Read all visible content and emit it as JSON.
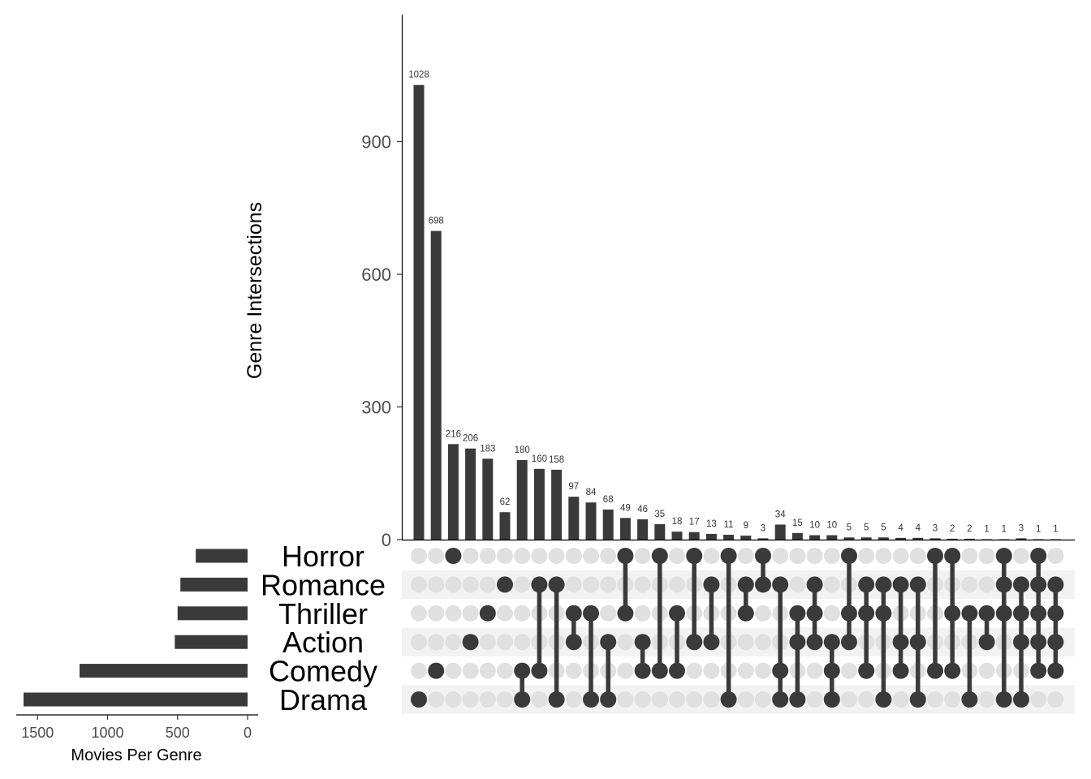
{
  "chart_data": {
    "type": "upset",
    "intersection_axis": {
      "label": "Genre Intersections",
      "ylim": [
        0,
        1180
      ],
      "ticks": [
        0,
        300,
        600,
        900
      ]
    },
    "set_size_axis": {
      "label": "Movies Per Genre",
      "xlim": [
        1650,
        0
      ],
      "ticks": [
        1500,
        1000,
        500,
        0
      ]
    },
    "sets": [
      "Horror",
      "Romance",
      "Thriller",
      "Action",
      "Comedy",
      "Drama"
    ],
    "set_sizes": [
      370,
      480,
      500,
      520,
      1200,
      1600
    ],
    "intersections": [
      {
        "value": 1028,
        "label": "1028",
        "members": [
          "Drama"
        ]
      },
      {
        "value": 698,
        "label": "698",
        "members": [
          "Comedy"
        ]
      },
      {
        "value": 216,
        "label": "216",
        "members": [
          "Horror"
        ]
      },
      {
        "value": 206,
        "label": "206",
        "members": [
          "Action"
        ]
      },
      {
        "value": 183,
        "label": "183",
        "members": [
          "Thriller"
        ]
      },
      {
        "value": 62,
        "label": "62",
        "members": [
          "Romance"
        ]
      },
      {
        "value": 180,
        "label": "180",
        "members": [
          "Comedy",
          "Drama"
        ]
      },
      {
        "value": 160,
        "label": "160",
        "members": [
          "Romance",
          "Comedy"
        ]
      },
      {
        "value": 158,
        "label": "158",
        "members": [
          "Romance",
          "Drama"
        ]
      },
      {
        "value": 97,
        "label": "97",
        "members": [
          "Thriller",
          "Action"
        ]
      },
      {
        "value": 84,
        "label": "84",
        "members": [
          "Thriller",
          "Drama"
        ]
      },
      {
        "value": 68,
        "label": "68",
        "members": [
          "Action",
          "Drama"
        ]
      },
      {
        "value": 49,
        "label": "49",
        "members": [
          "Horror",
          "Thriller"
        ]
      },
      {
        "value": 46,
        "label": "46",
        "members": [
          "Action",
          "Comedy"
        ]
      },
      {
        "value": 35,
        "label": "35",
        "members": [
          "Horror",
          "Comedy"
        ]
      },
      {
        "value": 18,
        "label": "18",
        "members": [
          "Thriller",
          "Comedy"
        ]
      },
      {
        "value": 17,
        "label": "17",
        "members": [
          "Horror",
          "Action"
        ]
      },
      {
        "value": 13,
        "label": "13",
        "members": [
          "Romance",
          "Action"
        ]
      },
      {
        "value": 11,
        "label": "11",
        "members": [
          "Horror",
          "Drama"
        ]
      },
      {
        "value": 9,
        "label": "9",
        "members": [
          "Romance",
          "Thriller"
        ]
      },
      {
        "value": 3,
        "label": "3",
        "members": [
          "Horror",
          "Romance"
        ]
      },
      {
        "value": 34,
        "label": "34",
        "members": [
          "Romance",
          "Comedy",
          "Drama"
        ]
      },
      {
        "value": 15,
        "label": "15",
        "members": [
          "Thriller",
          "Action",
          "Drama"
        ]
      },
      {
        "value": 10,
        "label": "10",
        "members": [
          "Romance",
          "Thriller",
          "Action"
        ]
      },
      {
        "value": 10,
        "label": "10",
        "members": [
          "Action",
          "Comedy",
          "Drama"
        ]
      },
      {
        "value": 5,
        "label": "5",
        "members": [
          "Horror",
          "Thriller",
          "Action"
        ]
      },
      {
        "value": 5,
        "label": "5",
        "members": [
          "Romance",
          "Thriller",
          "Comedy"
        ]
      },
      {
        "value": 5,
        "label": "5",
        "members": [
          "Romance",
          "Thriller",
          "Drama"
        ]
      },
      {
        "value": 4,
        "label": "4",
        "members": [
          "Romance",
          "Action",
          "Comedy"
        ]
      },
      {
        "value": 4,
        "label": "4",
        "members": [
          "Romance",
          "Action",
          "Drama"
        ]
      },
      {
        "value": 3,
        "label": "3",
        "members": [
          "Horror",
          "Comedy"
        ]
      },
      {
        "value": 2,
        "label": "2",
        "members": [
          "Horror",
          "Thriller",
          "Comedy"
        ]
      },
      {
        "value": 2,
        "label": "2",
        "members": [
          "Thriller",
          "Drama"
        ]
      },
      {
        "value": 1,
        "label": "1",
        "members": [
          "Thriller",
          "Action"
        ]
      },
      {
        "value": 1,
        "label": "1",
        "members": [
          "Horror",
          "Romance",
          "Thriller",
          "Drama"
        ]
      },
      {
        "value": 3,
        "label": "3",
        "members": [
          "Romance",
          "Thriller",
          "Action",
          "Drama"
        ]
      },
      {
        "value": 1,
        "label": "1",
        "members": [
          "Horror",
          "Romance",
          "Thriller",
          "Action",
          "Comedy"
        ]
      },
      {
        "value": 1,
        "label": "1",
        "members": [
          "Romance",
          "Thriller",
          "Action",
          "Comedy"
        ]
      }
    ],
    "colors": {
      "bar": "#3a3a3a",
      "dot_active": "#3a3a3a",
      "dot_inactive": "#e0e0e0",
      "stripe": "#f2f2f2",
      "axis_text": "#4d4d4d"
    },
    "grid": false
  }
}
